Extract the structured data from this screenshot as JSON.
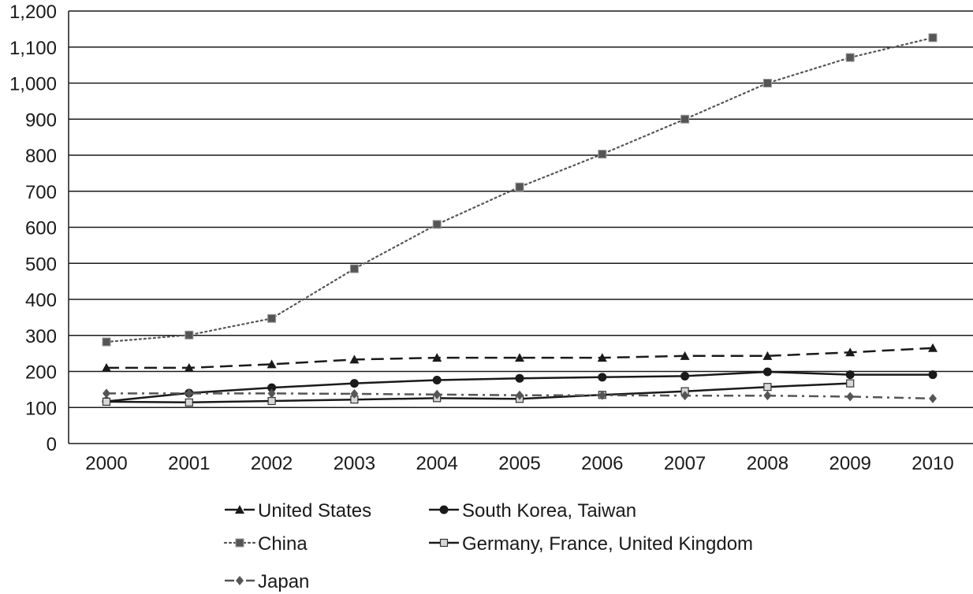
{
  "chart_data": {
    "type": "line",
    "title": "",
    "xlabel": "",
    "ylabel": "",
    "categories": [
      "2000",
      "2001",
      "2002",
      "2003",
      "2004",
      "2005",
      "2006",
      "2007",
      "2008",
      "2009",
      "2010"
    ],
    "ylim": [
      0,
      1200
    ],
    "yticks": [
      "0",
      "100",
      "200",
      "300",
      "400",
      "500",
      "600",
      "700",
      "800",
      "900",
      "1,000",
      "1,100",
      "1,200"
    ],
    "grid": "horizontal",
    "legend_position": "bottom",
    "series": [
      {
        "name": "United States",
        "values": [
          210,
          210,
          220,
          233,
          238,
          238,
          238,
          243,
          243,
          253,
          265
        ],
        "marker": "triangle",
        "line_style": "dashed",
        "color": "#1a1a1a"
      },
      {
        "name": "South Korea, Taiwan",
        "values": [
          117,
          140,
          155,
          167,
          176,
          181,
          184,
          187,
          199,
          191,
          191
        ],
        "marker": "circle",
        "line_style": "solid",
        "color": "#1a1a1a"
      },
      {
        "name": "China",
        "values": [
          282,
          301,
          347,
          485,
          608,
          712,
          803,
          900,
          1000,
          1071,
          1126
        ],
        "marker": "square",
        "line_style": "dotted",
        "color": "#555555"
      },
      {
        "name": "Germany, France, United Kingdom",
        "values": [
          116,
          114,
          118,
          122,
          126,
          124,
          135,
          145,
          157,
          167,
          null
        ],
        "marker": "hollow-square",
        "line_style": "solid",
        "color": "#1a1a1a"
      },
      {
        "name": "Japan",
        "values": [
          139,
          139,
          139,
          138,
          136,
          134,
          134,
          133,
          133,
          130,
          125
        ],
        "marker": "diamond",
        "line_style": "dash-dot",
        "color": "#555555"
      }
    ]
  },
  "legend": {
    "items": [
      {
        "label": "United States"
      },
      {
        "label": "South Korea, Taiwan"
      },
      {
        "label": "China"
      },
      {
        "label": "Germany, France, United Kingdom"
      },
      {
        "label": "Japan"
      }
    ]
  }
}
